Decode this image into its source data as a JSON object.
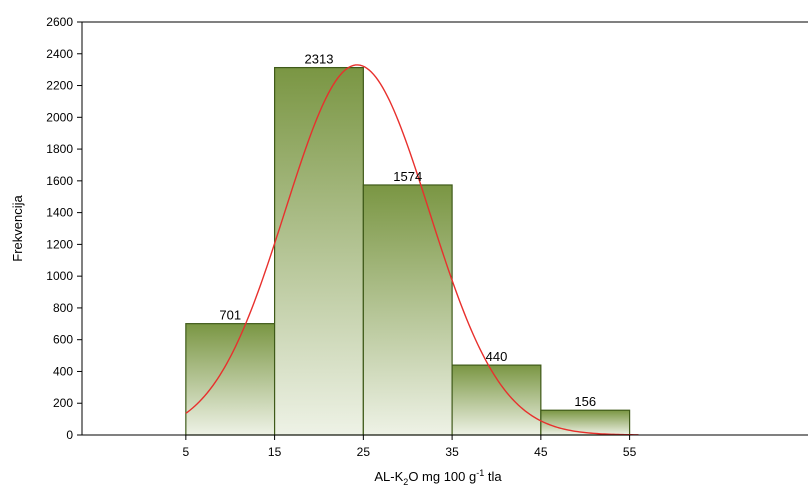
{
  "chart_data": {
    "type": "bar",
    "bins": [
      {
        "from": 5,
        "to": 15,
        "value": 701,
        "label": "701"
      },
      {
        "from": 15,
        "to": 25,
        "value": 2313,
        "label": "2313"
      },
      {
        "from": 25,
        "to": 35,
        "value": 1574,
        "label": "1574"
      },
      {
        "from": 35,
        "to": 45,
        "value": 440,
        "label": "440"
      },
      {
        "from": 45,
        "to": 55,
        "value": 156,
        "label": "156"
      }
    ],
    "x_ticks": [
      5,
      15,
      25,
      35,
      45,
      55
    ],
    "y_ticks": [
      0,
      200,
      400,
      600,
      800,
      1000,
      1200,
      1400,
      1600,
      1800,
      2000,
      2200,
      2400,
      2600
    ],
    "xlim": [
      -6.7,
      75.1
    ],
    "ylim": [
      0,
      2600
    ],
    "ylabel": "Frekvencija",
    "xlabel": {
      "prefix": "AL-K",
      "sub": "2",
      "mid": "O mg 100 g",
      "sup": "-1",
      "suffix": " tla"
    },
    "fit_curve": {
      "type": "normal",
      "mean": 24.3,
      "sd": 8.1,
      "peak": 2330,
      "range": [
        5,
        56
      ]
    },
    "colors": {
      "bar_top": "#7a9643",
      "bar_bottom": "#eef2e6",
      "bar_stroke": "#3f5a19",
      "curve": "#e8302d"
    },
    "grid": false
  }
}
